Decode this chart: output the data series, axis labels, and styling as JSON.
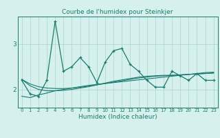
{
  "title": "Courbe de l'humidex pour Steinkjer",
  "xlabel": "Humidex (Indice chaleur)",
  "x_values": [
    0,
    1,
    2,
    3,
    4,
    5,
    6,
    7,
    8,
    9,
    10,
    11,
    12,
    13,
    14,
    15,
    16,
    17,
    18,
    19,
    20,
    21,
    22,
    23
  ],
  "main_line": [
    2.2,
    1.9,
    1.85,
    2.2,
    3.5,
    2.4,
    2.5,
    2.7,
    2.5,
    2.15,
    2.6,
    2.85,
    2.9,
    2.55,
    2.4,
    2.2,
    2.05,
    2.05,
    2.4,
    2.3,
    2.2,
    2.35,
    2.2,
    2.2
  ],
  "smooth_line1": [
    1.85,
    1.82,
    1.88,
    1.92,
    1.97,
    2.0,
    2.03,
    2.06,
    2.09,
    2.11,
    2.13,
    2.15,
    2.17,
    2.19,
    2.21,
    2.23,
    2.25,
    2.27,
    2.29,
    2.31,
    2.33,
    2.35,
    2.37,
    2.38
  ],
  "smooth_line2": [
    2.22,
    2.12,
    2.06,
    2.03,
    2.02,
    2.02,
    2.03,
    2.05,
    2.07,
    2.1,
    2.13,
    2.16,
    2.19,
    2.22,
    2.25,
    2.27,
    2.29,
    2.3,
    2.31,
    2.32,
    2.33,
    2.34,
    2.35,
    2.36
  ],
  "smooth_line3": [
    2.22,
    2.08,
    2.0,
    1.97,
    1.97,
    1.98,
    2.0,
    2.03,
    2.06,
    2.1,
    2.14,
    2.18,
    2.21,
    2.24,
    2.27,
    2.29,
    2.3,
    2.31,
    2.31,
    2.32,
    2.33,
    2.34,
    2.35,
    2.36
  ],
  "line_color": "#1a7a6e",
  "bg_color": "#d6f0ee",
  "grid_color": "#b0d8d4",
  "ylim": [
    1.6,
    3.6
  ],
  "yticks": [
    2.0,
    3.0
  ],
  "ytick_labels": [
    "2",
    "3"
  ],
  "title_fontsize": 6.5,
  "xlabel_fontsize": 6.5,
  "xtick_fontsize": 5.0,
  "ytick_fontsize": 6.5
}
